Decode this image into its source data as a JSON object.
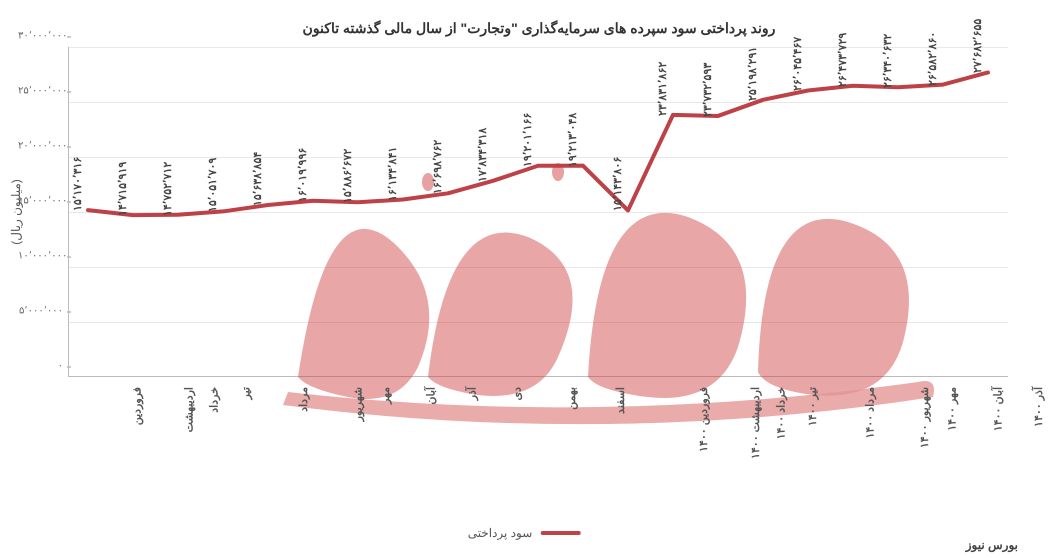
{
  "chart": {
    "type": "line",
    "title": "روند پرداختی سود سپرده های سرمایه‌گذاری \"وتجارت\" از سال مالی گذشته تاکنون",
    "ylabel": "(میلیون ریال)",
    "legend_label": "سود پرداختی",
    "line_color": "#bd4146",
    "line_width": 4,
    "grid_color": "#e8e8e8",
    "axis_color": "#bbbbbb",
    "background_color": "#ffffff",
    "title_fontsize": 14,
    "label_fontsize": 12,
    "tick_fontsize": 10,
    "ylim": [
      0,
      30000000
    ],
    "ytick_step": 5000000,
    "yticks": [
      {
        "value": 0,
        "label": "۰"
      },
      {
        "value": 5000000,
        "label": "۵٬۰۰۰٬۰۰۰"
      },
      {
        "value": 10000000,
        "label": "۱۰٬۰۰۰٬۰۰۰"
      },
      {
        "value": 15000000,
        "label": "۱۵٬۰۰۰٬۰۰۰"
      },
      {
        "value": 20000000,
        "label": "۲۰٬۰۰۰٬۰۰۰"
      },
      {
        "value": 25000000,
        "label": "۲۵٬۰۰۰٬۰۰۰"
      },
      {
        "value": 30000000,
        "label": "۳۰٬۰۰۰٬۰۰۰"
      }
    ],
    "categories": [
      "فروردین",
      "اردیبهشت",
      "خرداد",
      "تیر",
      "مرداد",
      "شهریور",
      "مهر",
      "آبان",
      "آذر",
      "دی",
      "بهمن",
      "اسفند",
      "فروردین ۱۴۰۰",
      "اردیبهشت ۱۴۰۰",
      "خرداد ۱۴۰۰",
      "تیر ۱۴۰۰",
      "مرداد ۱۴۰۰",
      "شهریور ۱۴۰۰",
      "مهر ۱۴۰۰",
      "آبان ۱۴۰۰",
      "آذر ۱۴۰۰"
    ],
    "values": [
      15170316,
      14715919,
      14752712,
      15051709,
      15638854,
      16019996,
      15886672,
      16134841,
      16698762,
      17834318,
      19201166,
      19213048,
      15143806,
      23831862,
      23732593,
      25198291,
      26045467,
      26473729,
      26340632,
      26582860,
      27682655
    ],
    "value_labels": [
      "۱۵٬۱۷۰٬۳۱۶",
      "۱۴٬۷۱۵٬۹۱۹",
      "۱۴٬۷۵۲٬۷۱۲",
      "۱۵٬۰۵۱٬۷۰۹",
      "۱۵٬۶۳۸٬۸۵۴",
      "۱۶٬۰۱۹٬۹۹۶",
      "۱۵٬۸۸۶٬۶۷۲",
      "۱۶٬۱۳۴٬۸۴۱",
      "۱۶٬۶۹۸٬۷۶۲",
      "۱۷٬۸۳۴٬۳۱۸",
      "۱۹٬۲۰۱٬۱۶۶",
      "۱۹٬۲۱۳٬۰۴۸",
      "۱۵٬۱۴۳٬۸۰۶",
      "۲۳٬۸۳۱٬۸۶۲",
      "۲۳٬۷۳۲٬۵۹۳",
      "۲۵٬۱۹۸٬۲۹۱",
      "۲۶٬۰۴۵٬۴۶۷",
      "۲۶٬۴۷۳٬۷۲۹",
      "۲۶٬۳۴۰٬۶۳۲",
      "۲۶٬۵۸۲٬۸۶۰",
      "۲۷٬۶۸۲٬۶۵۵"
    ],
    "brand_text": "بورس نیوز",
    "watermark_color": "#d04040"
  }
}
